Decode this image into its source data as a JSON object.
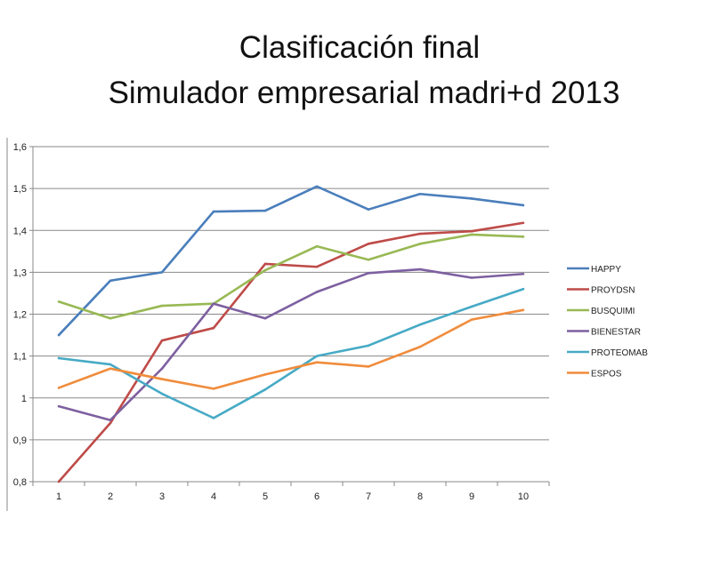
{
  "chart_data": {
    "type": "line",
    "title": "Clasificación final",
    "subtitle": "Simulador empresarial madri+d 2013",
    "xlabel": "",
    "ylabel": "",
    "categories": [
      "1",
      "2",
      "3",
      "4",
      "5",
      "6",
      "7",
      "8",
      "9",
      "10"
    ],
    "ylim": [
      0.8,
      1.6
    ],
    "yticks": [
      "0,8",
      "0,9",
      "1",
      "1,1",
      "1,2",
      "1,3",
      "1,4",
      "1,5",
      "1,6"
    ],
    "grid": true,
    "legend": "right",
    "series": [
      {
        "name": "HAPPY",
        "color": "#4a7ebb",
        "values": [
          1.15,
          1.28,
          1.3,
          1.445,
          1.447,
          1.505,
          1.45,
          1.487,
          1.476,
          1.46
        ]
      },
      {
        "name": "PROYDSN",
        "color": "#be4b48",
        "values": [
          0.8,
          0.94,
          1.137,
          1.167,
          1.32,
          1.313,
          1.368,
          1.392,
          1.398,
          1.418
        ]
      },
      {
        "name": "BUSQUIMI",
        "color": "#98b954",
        "values": [
          1.23,
          1.19,
          1.22,
          1.225,
          1.305,
          1.362,
          1.33,
          1.368,
          1.39,
          1.385
        ]
      },
      {
        "name": "BIENESTAR",
        "color": "#7d60a0",
        "values": [
          0.98,
          0.947,
          1.07,
          1.225,
          1.19,
          1.253,
          1.298,
          1.307,
          1.287,
          1.296
        ]
      },
      {
        "name": "PROTEOMAB",
        "color": "#46aac5",
        "values": [
          1.095,
          1.08,
          1.01,
          0.952,
          1.02,
          1.1,
          1.125,
          1.175,
          1.218,
          1.26
        ]
      },
      {
        "name": "ESPOS",
        "color": "#f08c3c",
        "values": [
          1.024,
          1.07,
          1.045,
          1.022,
          1.056,
          1.085,
          1.075,
          1.122,
          1.187,
          1.21
        ]
      }
    ]
  }
}
